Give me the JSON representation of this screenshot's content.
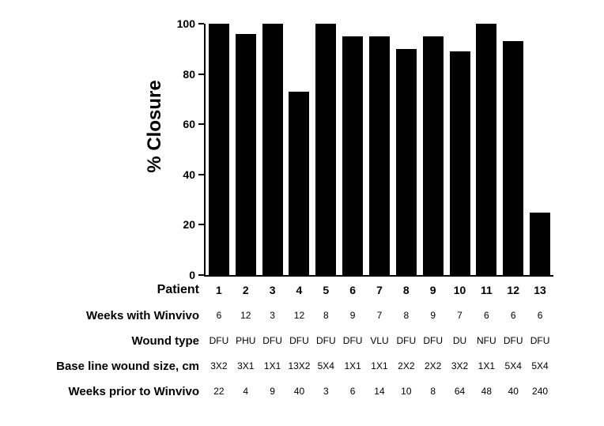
{
  "chart_data": {
    "type": "bar",
    "title": "",
    "ylabel": "% Closure",
    "xlabel": "Patient",
    "ylim": [
      0,
      100
    ],
    "yticks": [
      0,
      20,
      40,
      60,
      80,
      100
    ],
    "grid": false,
    "legend": false,
    "bar_color": "#000000",
    "categories": [
      "1",
      "2",
      "3",
      "4",
      "5",
      "6",
      "7",
      "8",
      "9",
      "10",
      "11",
      "12",
      "13"
    ],
    "values": [
      100,
      96,
      100,
      73,
      100,
      95,
      95,
      90,
      95,
      89,
      100,
      93,
      25
    ]
  },
  "table": {
    "rows": [
      {
        "label": "Patient",
        "values": [
          "1",
          "2",
          "3",
          "4",
          "5",
          "6",
          "7",
          "8",
          "9",
          "10",
          "11",
          "12",
          "13"
        ]
      },
      {
        "label": "Weeks with Winvivo",
        "values": [
          "6",
          "12",
          "3",
          "12",
          "8",
          "9",
          "7",
          "8",
          "9",
          "7",
          "6",
          "6",
          "6"
        ]
      },
      {
        "label": "Wound type",
        "values": [
          "DFU",
          "PHU",
          "DFU",
          "DFU",
          "DFU",
          "DFU",
          "VLU",
          "DFU",
          "DFU",
          "DU",
          "NFU",
          "DFU",
          "DFU"
        ]
      },
      {
        "label": "Base line wound size, cm",
        "values": [
          "3X2",
          "3X1",
          "1X1",
          "13X2",
          "5X4",
          "1X1",
          "1X1",
          "2X2",
          "2X2",
          "3X2",
          "1X1",
          "5X4",
          "5X4"
        ]
      },
      {
        "label": "Weeks prior to Winvivo",
        "values": [
          "22",
          "4",
          "9",
          "40",
          "3",
          "6",
          "14",
          "10",
          "8",
          "64",
          "48",
          "40",
          "240"
        ]
      }
    ]
  }
}
